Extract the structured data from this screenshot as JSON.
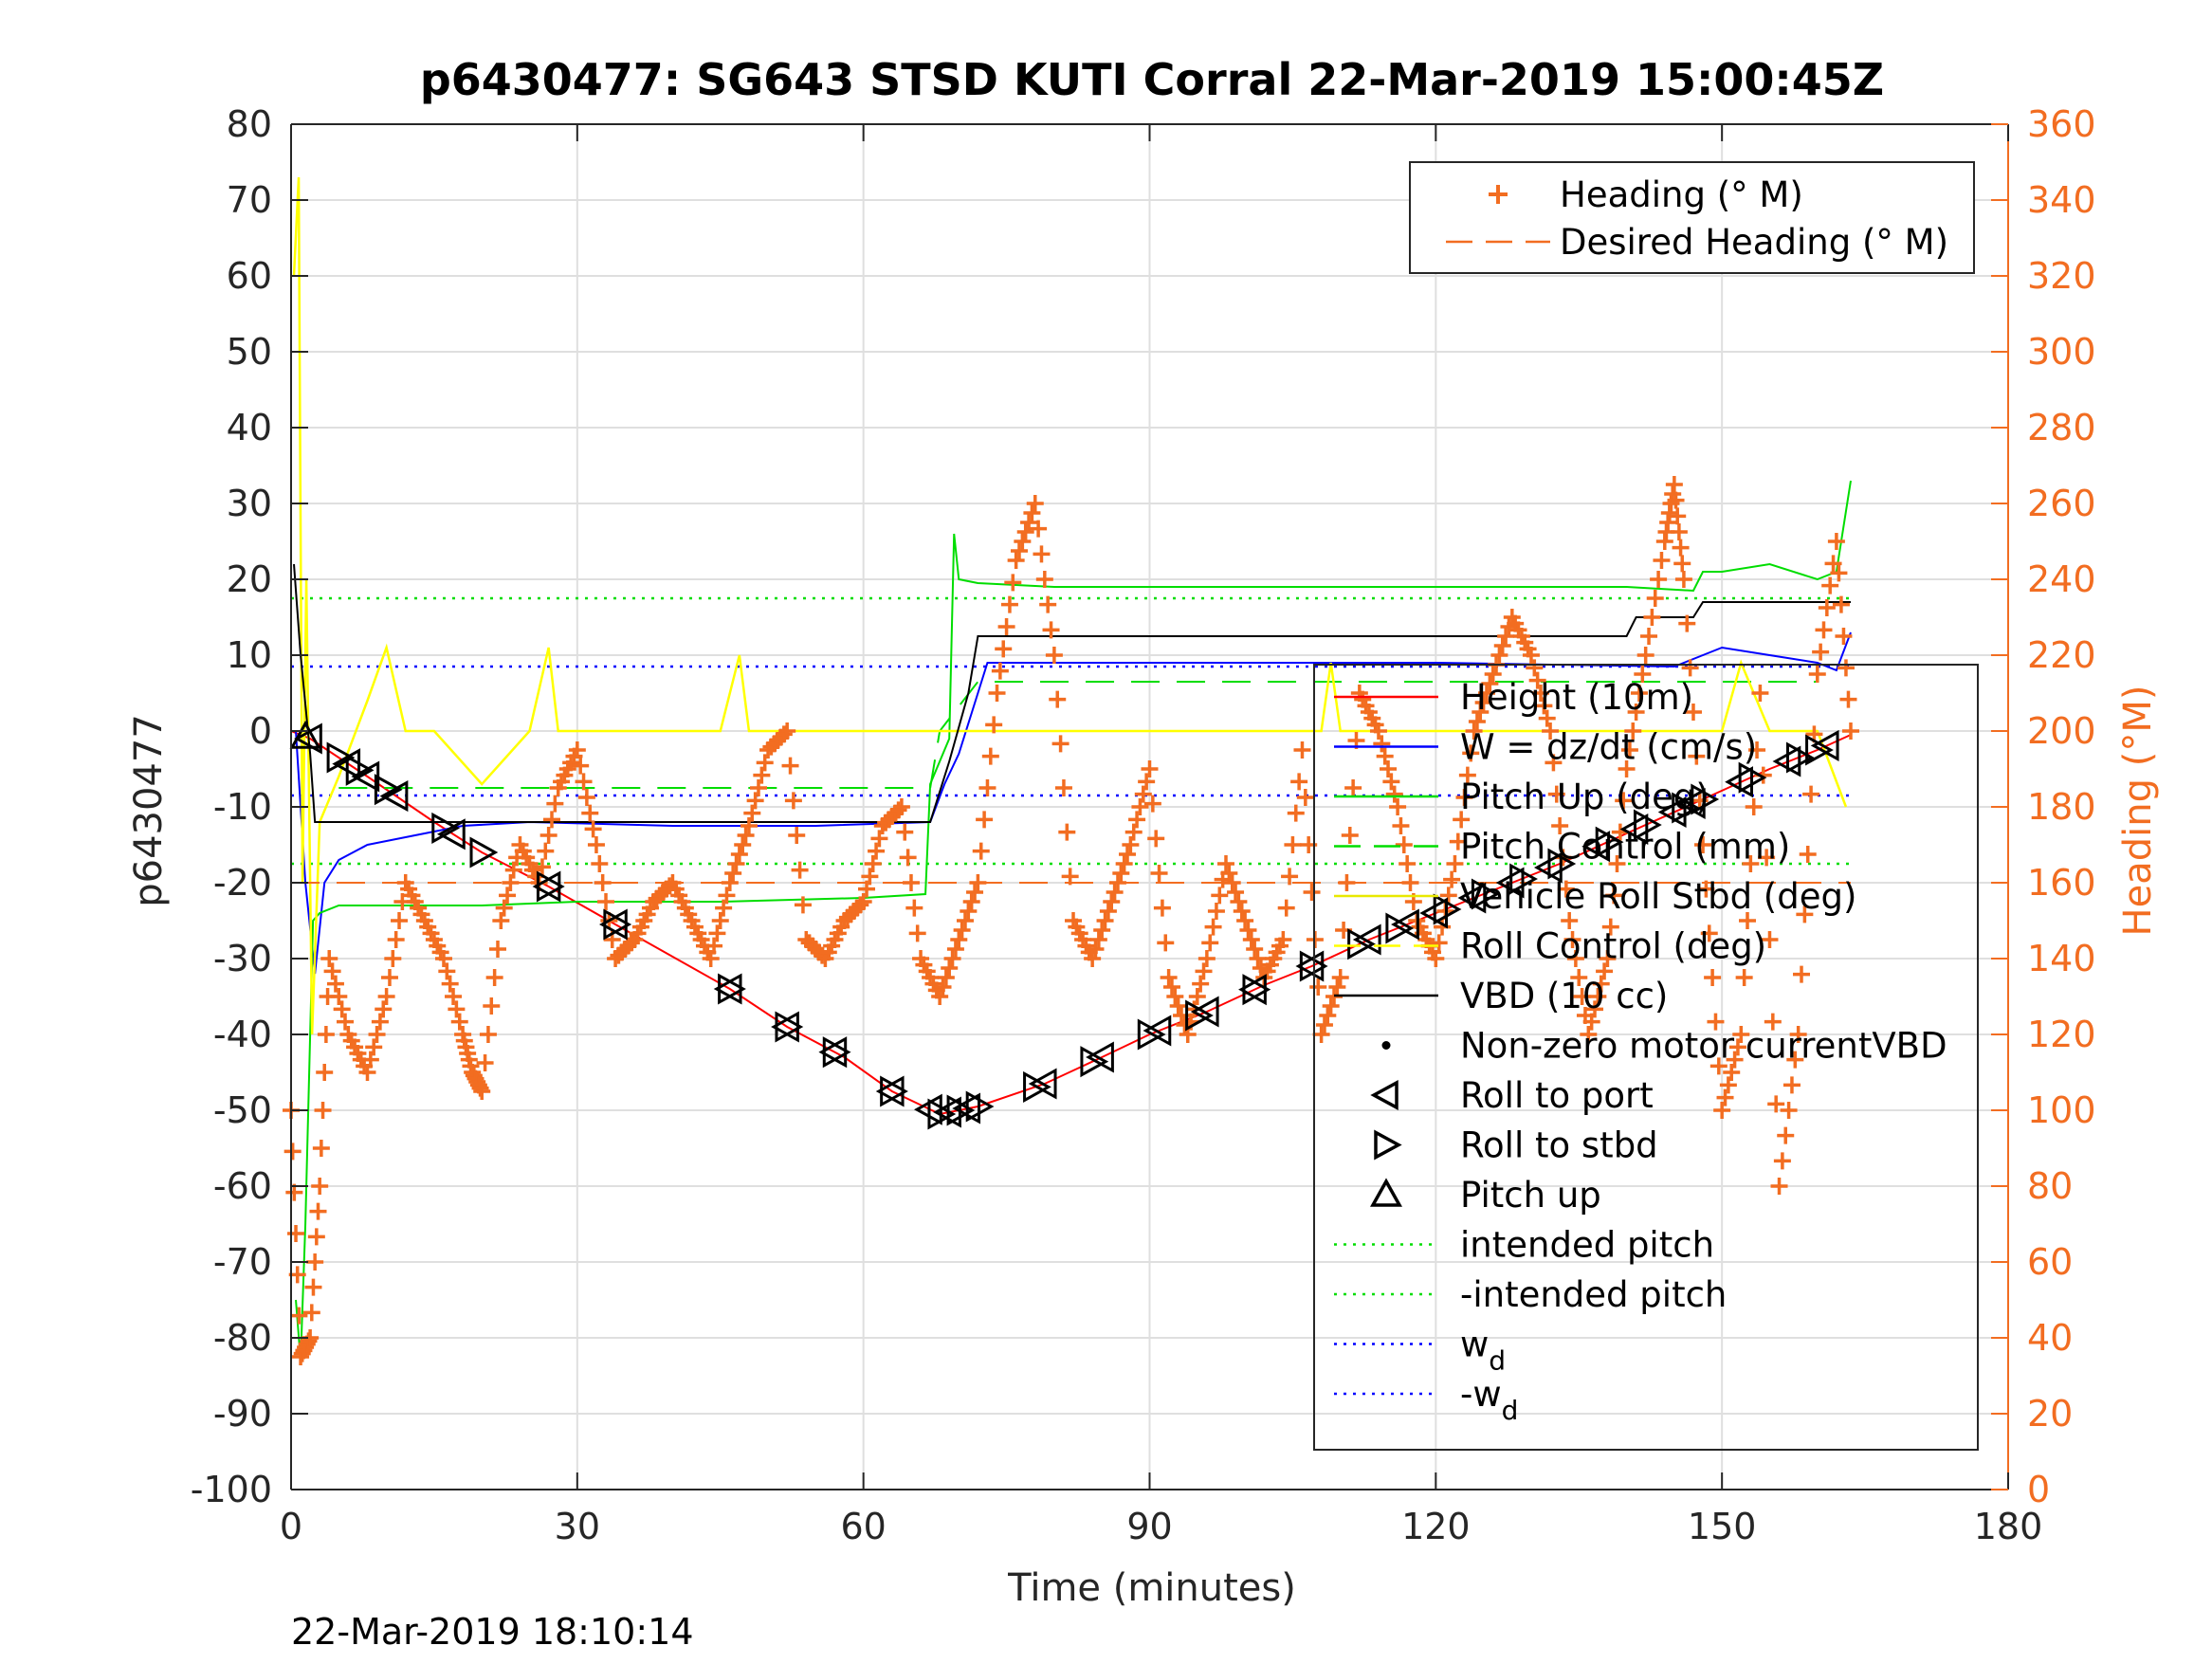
{
  "chart_data": {
    "type": "line",
    "title": "p6430477: SG643 STSD KUTI Corral 22-Mar-2019 15:00:45Z",
    "xlabel": "Time (minutes)",
    "ylabel": "p6430477",
    "ylabel_right": "Heading (°M)",
    "xlim": [
      0,
      180
    ],
    "ylim": [
      -100,
      80
    ],
    "ylim_right": [
      0,
      360
    ],
    "x_ticks": [
      "0",
      "30",
      "60",
      "90",
      "120",
      "150",
      "180"
    ],
    "y_ticks": [
      "80",
      "70",
      "60",
      "50",
      "40",
      "30",
      "20",
      "10",
      "0",
      "-10",
      "-20",
      "-30",
      "-40",
      "-50",
      "-60",
      "-70",
      "-80",
      "-90",
      "-100"
    ],
    "y_ticks_right": [
      "360",
      "340",
      "320",
      "300",
      "280",
      "260",
      "240",
      "220",
      "200",
      "180",
      "160",
      "140",
      "120",
      "100",
      "80",
      "60",
      "40",
      "20",
      "0"
    ],
    "grid": true,
    "footer": "22-Mar-2019 18:10:14",
    "legend_right_axis": {
      "placement": "top-right",
      "items": [
        {
          "label": "Heading (° M)",
          "color": "#f26d21",
          "style": "plus"
        },
        {
          "label": "Desired Heading (° M)",
          "color": "#f26d21",
          "style": "dash"
        }
      ]
    },
    "legend_left_axis": {
      "placement": "right",
      "items": [
        {
          "label": "Height (10m)",
          "color": "#ff0000",
          "style": "line"
        },
        {
          "label": "W = dz/dt (cm/s)",
          "color": "#0000ff",
          "style": "line"
        },
        {
          "label": "Pitch Up (deg)",
          "color": "#00dd00",
          "style": "line"
        },
        {
          "label": "Pitch Control (mm)",
          "color": "#00dd00",
          "style": "dash"
        },
        {
          "label": "Vehicle Roll Stbd (deg)",
          "color": "#ffff00",
          "style": "line"
        },
        {
          "label": "Roll Control (deg)",
          "color": "#ffff00",
          "style": "dash"
        },
        {
          "label": "VBD (10 cc)",
          "color": "#000000",
          "style": "line"
        },
        {
          "label": "Non-zero motor currentVBD",
          "color": "#000000",
          "style": "dot"
        },
        {
          "label": "Roll to port",
          "color": "#000000",
          "style": "tri-left"
        },
        {
          "label": "Roll to stbd",
          "color": "#000000",
          "style": "tri-right"
        },
        {
          "label": "Pitch up",
          "color": "#000000",
          "style": "tri-up"
        },
        {
          "label": "intended pitch",
          "color": "#00dd00",
          "style": "dot-line"
        },
        {
          "label": "-intended pitch",
          "color": "#00dd00",
          "style": "dot-line"
        },
        {
          "label": "w_d",
          "color": "#0000ff",
          "style": "dot-line"
        },
        {
          "label": "-w_d",
          "color": "#0000ff",
          "style": "dot-line"
        }
      ]
    },
    "series": [
      {
        "name": "Height (10m)",
        "axis": "left",
        "color": "#ff0000",
        "x": [
          0,
          2,
          8,
          15,
          20,
          27,
          34,
          46,
          52,
          58,
          63,
          68,
          72,
          79,
          85,
          90,
          96,
          102,
          107,
          113,
          120,
          126,
          133,
          140,
          148,
          155,
          160,
          163.5
        ],
        "y": [
          0,
          -1,
          -6,
          -12,
          -16,
          -20.5,
          -25.5,
          -34,
          -39,
          -43,
          -47.5,
          -50.5,
          -49.5,
          -46.5,
          -43,
          -40,
          -37,
          -33.5,
          -31,
          -27.5,
          -24,
          -21,
          -17.5,
          -13.5,
          -9,
          -5,
          -2.5,
          -0.5
        ]
      },
      {
        "name": "W = dz/dt (cm/s)",
        "axis": "left",
        "color": "#0000ff",
        "x": [
          0.5,
          1.5,
          2.5,
          3.5,
          5,
          8,
          12,
          18,
          25,
          40,
          55,
          67,
          68.5,
          70,
          71.5,
          73,
          80,
          100,
          120,
          145,
          148,
          150,
          155,
          160,
          162,
          163.5
        ],
        "y": [
          0,
          -20,
          -32,
          -20,
          -17,
          -15,
          -14,
          -12.5,
          -12,
          -12.5,
          -12.5,
          -12,
          -7,
          -3,
          3,
          9,
          9,
          9,
          9,
          8.5,
          10,
          11,
          10,
          9,
          8,
          13
        ]
      },
      {
        "name": "Pitch Up (deg)",
        "axis": "left",
        "color": "#00dd00",
        "x": [
          0.5,
          1,
          1.5,
          2,
          2.3,
          3,
          5,
          10,
          20,
          30,
          45,
          60,
          66.5,
          67,
          69,
          69.5,
          70,
          72,
          80,
          100,
          120,
          140,
          147,
          148,
          150,
          155,
          160,
          162,
          163.5
        ],
        "y": [
          -75,
          -83,
          -65,
          -40,
          -25,
          -24,
          -23,
          -23,
          -23,
          -22.5,
          -22.5,
          -22,
          -21.5,
          -7,
          -1,
          26,
          20,
          19.5,
          19,
          19,
          19,
          19,
          18.5,
          21,
          21,
          22,
          20,
          21,
          33
        ]
      },
      {
        "name": "Pitch Control (mm)",
        "axis": "left",
        "color": "#00dd00",
        "dash": true,
        "x": [
          5,
          67,
          68,
          72,
          160
        ],
        "y": [
          -7.5,
          -7.5,
          0,
          6.5,
          6.5
        ]
      },
      {
        "name": "Vehicle Roll Stbd (deg)",
        "axis": "left",
        "color": "#ffff00",
        "x": [
          0.3,
          0.8,
          1.2,
          1.6,
          2.2,
          3,
          5,
          8,
          10,
          12,
          15,
          20,
          25,
          27,
          28,
          30,
          45,
          47,
          48,
          60,
          68,
          75,
          85,
          100,
          108,
          109,
          110,
          120,
          140,
          150,
          152,
          155,
          160,
          163
        ],
        "y": [
          60,
          73,
          -20,
          20,
          -40,
          -12,
          -6,
          4,
          11,
          0,
          0,
          -7,
          0,
          11,
          0,
          0,
          0,
          10,
          0,
          0,
          0,
          0,
          0,
          0,
          0,
          9,
          0,
          0,
          0,
          0,
          9,
          0,
          0,
          -10
        ]
      },
      {
        "name": "VBD (10 cc)",
        "axis": "left",
        "color": "#000000",
        "x": [
          0.3,
          1,
          2,
          2.5,
          20,
          67,
          69,
          71,
          72,
          140,
          141,
          147,
          148,
          163.5
        ],
        "y": [
          22,
          10,
          -3,
          -12,
          -12,
          -12,
          -4,
          5,
          12.5,
          12.5,
          15,
          15,
          17,
          17
        ]
      },
      {
        "name": "Heading (° M)",
        "axis": "right",
        "color": "#f26d21",
        "marker": "plus",
        "x": [
          0,
          1,
          2,
          3,
          4,
          6,
          8,
          10,
          12,
          14,
          16,
          18,
          19,
          20,
          22,
          24,
          26,
          28,
          30,
          32,
          34,
          36,
          38,
          40,
          42,
          44,
          46,
          48,
          50,
          52,
          54,
          56,
          58,
          60,
          62,
          64,
          66,
          68,
          70,
          72,
          74,
          76,
          78,
          80,
          82,
          84,
          86,
          88,
          90,
          92,
          94,
          96,
          98,
          100,
          102,
          104,
          106,
          108,
          110,
          112,
          114,
          116,
          118,
          120,
          122,
          124,
          126,
          128,
          130,
          132,
          134,
          136,
          138,
          140,
          142,
          144,
          145,
          146,
          148,
          150,
          152,
          154,
          156,
          158,
          160,
          162,
          163.5
        ],
        "y": [
          100,
          35,
          40,
          80,
          140,
          120,
          110,
          130,
          160,
          150,
          140,
          120,
          110,
          105,
          150,
          170,
          160,
          185,
          195,
          170,
          140,
          145,
          155,
          160,
          150,
          140,
          160,
          175,
          195,
          200,
          145,
          140,
          150,
          155,
          175,
          180,
          140,
          130,
          145,
          160,
          210,
          245,
          260,
          220,
          150,
          140,
          155,
          170,
          190,
          135,
          120,
          140,
          165,
          150,
          135,
          145,
          195,
          120,
          135,
          210,
          200,
          180,
          150,
          140,
          165,
          200,
          215,
          230,
          220,
          200,
          150,
          120,
          140,
          190,
          220,
          250,
          265,
          240,
          170,
          100,
          120,
          210,
          80,
          120,
          215,
          250,
          200
        ]
      },
      {
        "name": "Desired Heading (° M)",
        "axis": "right",
        "color": "#f26d21",
        "dash": true,
        "x": [
          0,
          163.5
        ],
        "y": [
          160,
          160
        ]
      }
    ],
    "reference_lines": [
      {
        "name": "intended pitch",
        "y": 17.5,
        "color": "#00dd00"
      },
      {
        "name": "-intended pitch",
        "y": -17.5,
        "color": "#00dd00"
      },
      {
        "name": "w_d",
        "y": 8.5,
        "color": "#0000ff"
      },
      {
        "name": "-w_d",
        "y": -8.5,
        "color": "#0000ff"
      }
    ],
    "markers": {
      "roll_to_port_x": [
        2,
        6,
        8,
        11,
        17,
        27,
        34,
        46,
        52,
        57,
        63,
        67,
        69,
        71,
        79,
        85,
        91,
        96,
        101,
        107,
        113,
        117,
        120,
        124,
        128,
        132,
        137,
        141,
        145,
        147,
        152,
        157,
        161
      ],
      "roll_to_stbd_x": [
        5,
        7,
        10,
        16,
        20,
        27,
        34,
        46,
        52,
        57,
        63,
        68,
        70,
        72,
        78,
        84,
        90,
        95,
        101,
        107,
        112,
        116,
        121,
        125,
        129,
        133,
        138,
        142,
        146,
        148,
        153,
        158,
        160
      ],
      "pitch_up_x": [
        1.5
      ]
    }
  }
}
